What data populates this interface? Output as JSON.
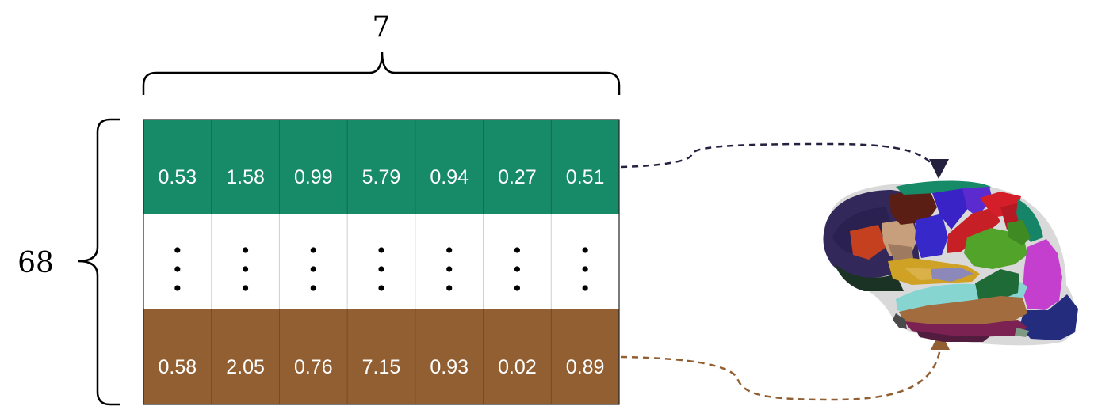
{
  "matrix": {
    "columns_label": "7",
    "rows_label": "68",
    "top_row": {
      "color": "#178a68",
      "values": [
        "0.53",
        "1.58",
        "0.99",
        "5.79",
        "0.94",
        "0.27",
        "0.51"
      ]
    },
    "middle_row": {
      "symbol": "vertical-ellipsis"
    },
    "bottom_row": {
      "color": "#925f33",
      "values": [
        "0.58",
        "2.05",
        "0.76",
        "7.15",
        "0.93",
        "0.02",
        "0.89"
      ]
    }
  },
  "arrows": {
    "top_color": "#24203f",
    "bottom_color": "#925f33"
  },
  "brain": {
    "icon": "brain-parcellation-icon"
  }
}
